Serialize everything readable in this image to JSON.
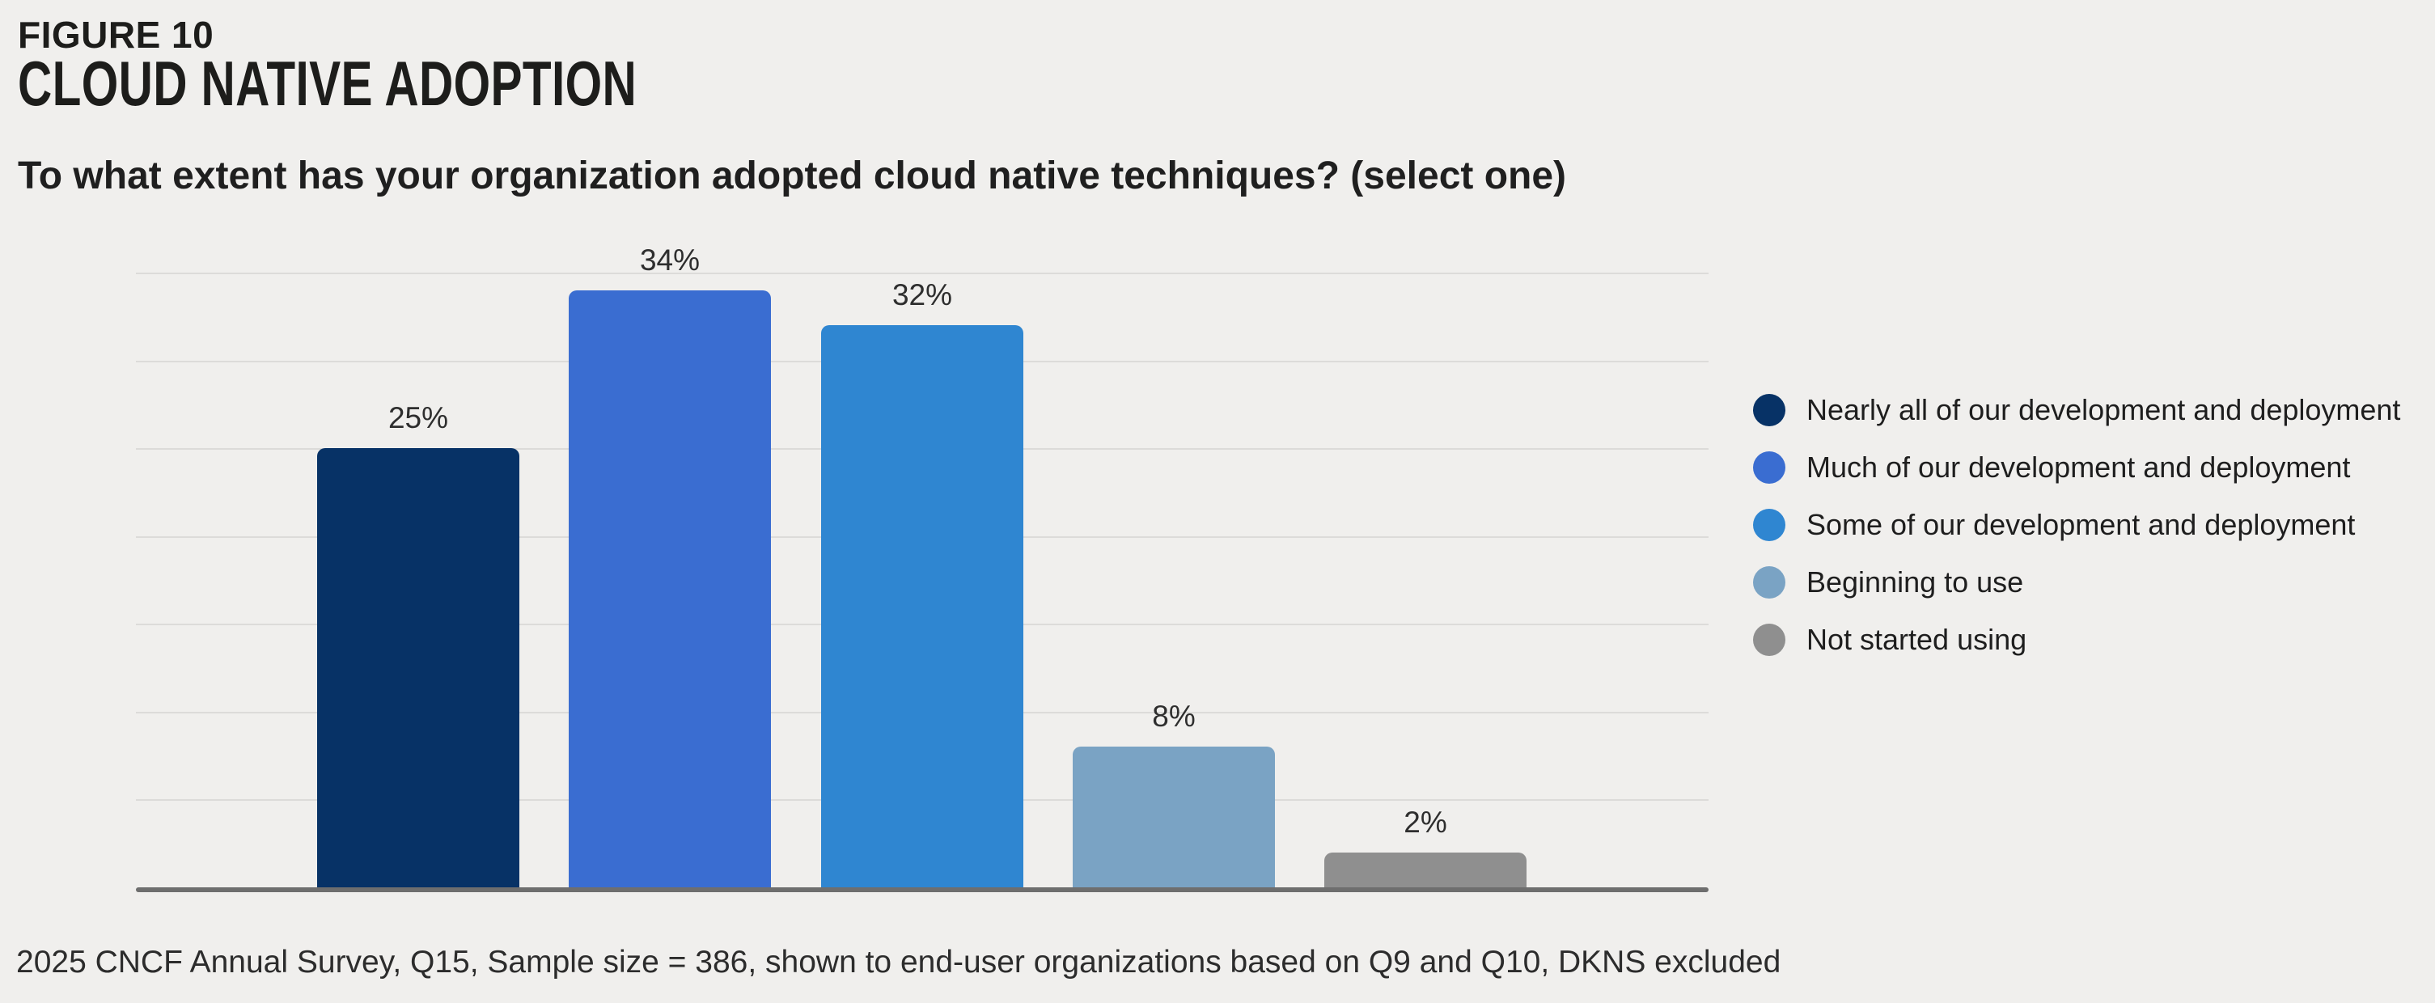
{
  "header": {
    "figure_label": "FIGURE 10",
    "title": "CLOUD NATIVE ADOPTION",
    "subtitle": "To what extent has your organization adopted cloud native techniques? (select one)"
  },
  "footnote": "2025 CNCF Annual Survey, Q15, Sample size = 386, shown to end-user organizations based on Q9 and Q10, DKNS excluded",
  "colors": {
    "background": "#f0efed",
    "gridline": "#dcdbd9",
    "axis_line": "#6e6e6e",
    "text": "#1d1d1b"
  },
  "chart_data": {
    "type": "bar",
    "title": "CLOUD NATIVE ADOPTION",
    "question": "To what extent has your organization adopted cloud native techniques? (select one)",
    "categories": [
      "Nearly all of our development and deployment",
      "Much of our development and deployment",
      "Some of our development and deployment",
      "Beginning to use",
      "Not started using"
    ],
    "values": [
      25,
      34,
      32,
      8,
      2
    ],
    "value_labels": [
      "25%",
      "34%",
      "32%",
      "8%",
      "2%"
    ],
    "colors": [
      "#073266",
      "#3a6dd1",
      "#2f86d1",
      "#7aa3c4",
      "#8f8f8f"
    ],
    "unit": "%",
    "ylim": [
      0,
      35
    ],
    "gridline_step": 5,
    "grid": true,
    "x_tick_labels_shown": false,
    "y_tick_labels_shown": false,
    "legend_position": "right"
  }
}
